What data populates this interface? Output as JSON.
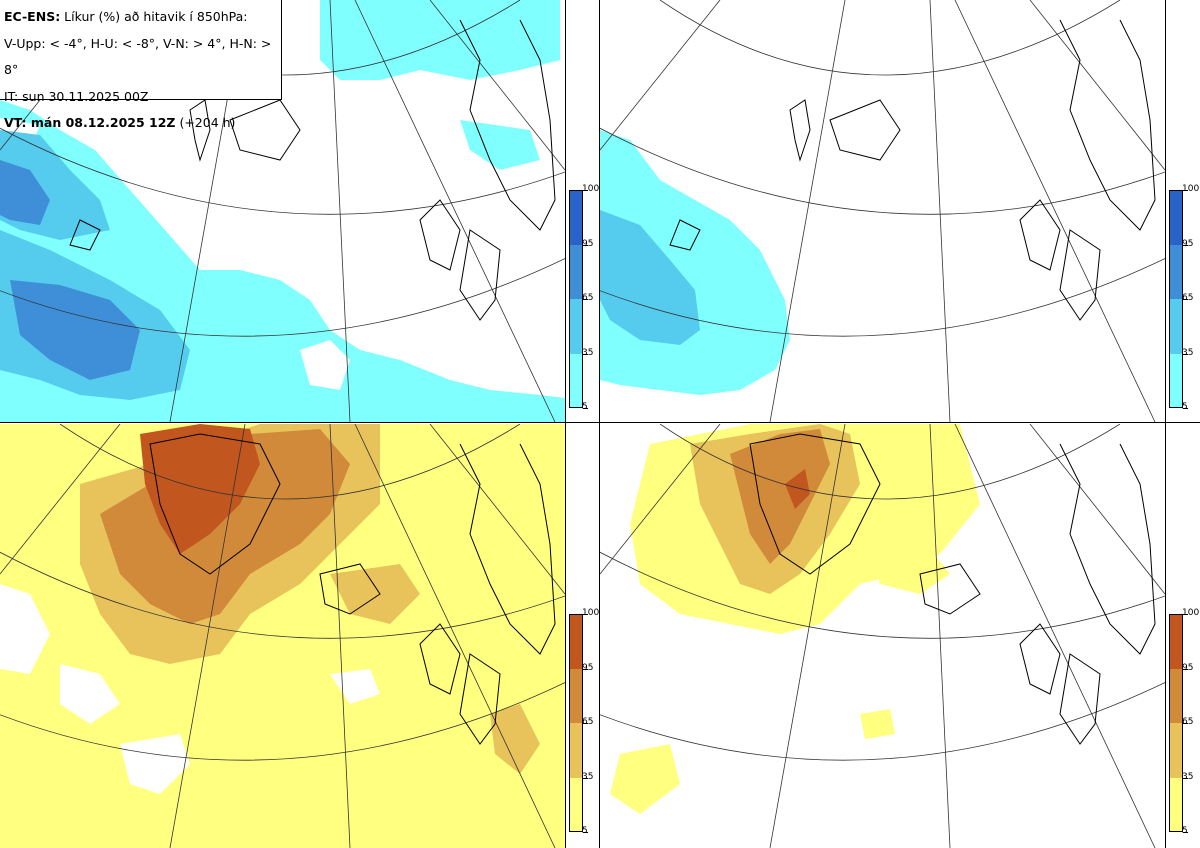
{
  "header": {
    "line1_bold": "EC-ENS:",
    "line1_rest": " Líkur (%) að hitavik í 850hPa:",
    "line2": "V-Upp: < -4°, H-U: < -8°, V-N: > 4°, H-N: > 8°",
    "line3": "IT: sun 30.11.2025 00Z",
    "line4_bold": "VT: mán 08.12.2025 12Z",
    "line4_rest": " (+204 h)"
  },
  "panels": [
    {
      "id": "v-upp",
      "palette": "cold",
      "ticks": [
        "100",
        "95",
        "65",
        "35",
        "5"
      ]
    },
    {
      "id": "h-u",
      "palette": "cold",
      "ticks": [
        "100",
        "95",
        "65",
        "35",
        "5"
      ]
    },
    {
      "id": "v-n",
      "palette": "warm",
      "ticks": [
        "100",
        "95",
        "65",
        "35",
        "5"
      ]
    },
    {
      "id": "h-n",
      "palette": "warm",
      "ticks": [
        "100",
        "95",
        "65",
        "35",
        "5"
      ]
    }
  ],
  "colors": {
    "cold": [
      "#80ffff",
      "#55ccee",
      "#3f8fd8",
      "#2a63c8"
    ],
    "warm": [
      "#ffff80",
      "#e8c25a",
      "#d18a3a",
      "#c2561f"
    ]
  }
}
